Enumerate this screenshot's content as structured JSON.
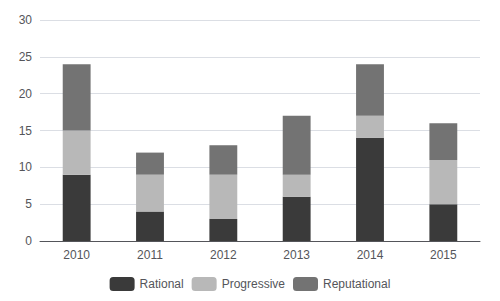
{
  "chart_data": {
    "type": "bar",
    "stacked": true,
    "categories": [
      "2010",
      "2011",
      "2012",
      "2013",
      "2014",
      "2015"
    ],
    "series": [
      {
        "name": "Rational",
        "color": "#3a3a3a",
        "values": [
          9,
          4,
          3,
          6,
          14,
          5
        ]
      },
      {
        "name": "Progressive",
        "color": "#b8b8b8",
        "values": [
          6,
          5,
          6,
          3,
          3,
          6
        ]
      },
      {
        "name": "Reputational",
        "color": "#737373",
        "values": [
          9,
          3,
          4,
          8,
          7,
          5
        ]
      }
    ],
    "ylim": [
      0,
      30
    ],
    "yticks": [
      0,
      5,
      10,
      15,
      20,
      25,
      30
    ],
    "grid": true,
    "legend": "bottom"
  }
}
